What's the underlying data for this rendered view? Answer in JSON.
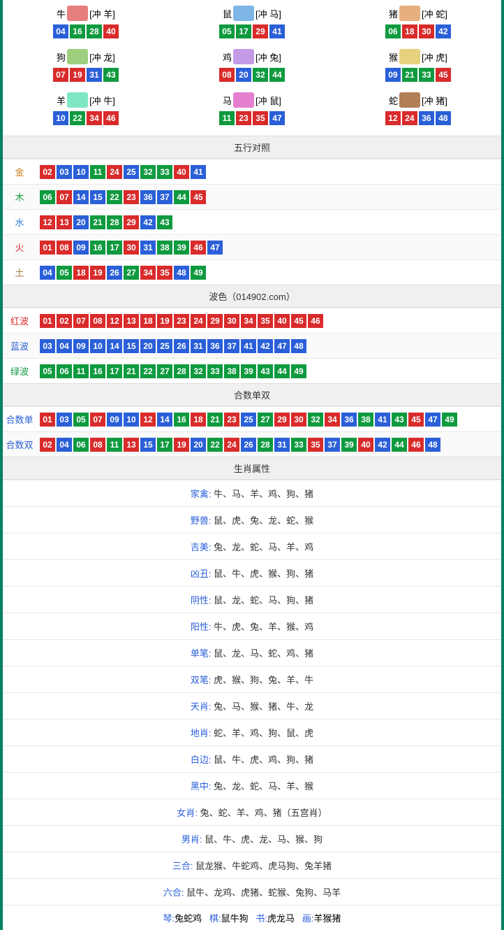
{
  "ball_colors": {
    "red": "#d92b2b",
    "blue": "#2a5fd8",
    "green": "#0f9a3f"
  },
  "zodiac_icon_colors": [
    "#e67e7e",
    "#7eb6e6",
    "#e6b07e",
    "#9ecf7e",
    "#c49be6",
    "#e6d27e",
    "#7ee6c4",
    "#e67ecf",
    "#b27e56"
  ],
  "zodiac": [
    {
      "name": "牛",
      "clash": "[冲 羊]",
      "balls": [
        {
          "n": "04",
          "c": "blue"
        },
        {
          "n": "16",
          "c": "green"
        },
        {
          "n": "28",
          "c": "green"
        },
        {
          "n": "40",
          "c": "red"
        }
      ]
    },
    {
      "name": "鼠",
      "clash": "[冲 马]",
      "balls": [
        {
          "n": "05",
          "c": "green"
        },
        {
          "n": "17",
          "c": "green"
        },
        {
          "n": "29",
          "c": "red"
        },
        {
          "n": "41",
          "c": "blue"
        }
      ]
    },
    {
      "name": "猪",
      "clash": "[冲 蛇]",
      "balls": [
        {
          "n": "06",
          "c": "green"
        },
        {
          "n": "18",
          "c": "red"
        },
        {
          "n": "30",
          "c": "red"
        },
        {
          "n": "42",
          "c": "blue"
        }
      ]
    },
    {
      "name": "狗",
      "clash": "[冲 龙]",
      "balls": [
        {
          "n": "07",
          "c": "red"
        },
        {
          "n": "19",
          "c": "red"
        },
        {
          "n": "31",
          "c": "blue"
        },
        {
          "n": "43",
          "c": "green"
        }
      ]
    },
    {
      "name": "鸡",
      "clash": "[冲 兔]",
      "balls": [
        {
          "n": "08",
          "c": "red"
        },
        {
          "n": "20",
          "c": "blue"
        },
        {
          "n": "32",
          "c": "green"
        },
        {
          "n": "44",
          "c": "green"
        }
      ]
    },
    {
      "name": "猴",
      "clash": "[冲 虎]",
      "balls": [
        {
          "n": "09",
          "c": "blue"
        },
        {
          "n": "21",
          "c": "green"
        },
        {
          "n": "33",
          "c": "green"
        },
        {
          "n": "45",
          "c": "red"
        }
      ]
    },
    {
      "name": "羊",
      "clash": "[冲 牛]",
      "balls": [
        {
          "n": "10",
          "c": "blue"
        },
        {
          "n": "22",
          "c": "green"
        },
        {
          "n": "34",
          "c": "red"
        },
        {
          "n": "46",
          "c": "red"
        }
      ]
    },
    {
      "name": "马",
      "clash": "[冲 鼠]",
      "balls": [
        {
          "n": "11",
          "c": "green"
        },
        {
          "n": "23",
          "c": "red"
        },
        {
          "n": "35",
          "c": "red"
        },
        {
          "n": "47",
          "c": "blue"
        }
      ]
    },
    {
      "name": "蛇",
      "clash": "[冲 猪]",
      "balls": [
        {
          "n": "12",
          "c": "red"
        },
        {
          "n": "24",
          "c": "red"
        },
        {
          "n": "36",
          "c": "blue"
        },
        {
          "n": "48",
          "c": "blue"
        }
      ]
    }
  ],
  "titles": {
    "wuxing": "五行对照",
    "bose": "波色（014902.com）",
    "heshu": "合数单双",
    "shuxing": "生肖属性"
  },
  "wuxing": [
    {
      "label": "金",
      "color": "#c97b1c",
      "balls": [
        {
          "n": "02",
          "c": "red"
        },
        {
          "n": "03",
          "c": "blue"
        },
        {
          "n": "10",
          "c": "blue"
        },
        {
          "n": "11",
          "c": "green"
        },
        {
          "n": "24",
          "c": "red"
        },
        {
          "n": "25",
          "c": "blue"
        },
        {
          "n": "32",
          "c": "green"
        },
        {
          "n": "33",
          "c": "green"
        },
        {
          "n": "40",
          "c": "red"
        },
        {
          "n": "41",
          "c": "blue"
        }
      ]
    },
    {
      "label": "木",
      "color": "#1c9a3f",
      "balls": [
        {
          "n": "06",
          "c": "green"
        },
        {
          "n": "07",
          "c": "red"
        },
        {
          "n": "14",
          "c": "blue"
        },
        {
          "n": "15",
          "c": "blue"
        },
        {
          "n": "22",
          "c": "green"
        },
        {
          "n": "23",
          "c": "red"
        },
        {
          "n": "36",
          "c": "blue"
        },
        {
          "n": "37",
          "c": "blue"
        },
        {
          "n": "44",
          "c": "green"
        },
        {
          "n": "45",
          "c": "red"
        }
      ]
    },
    {
      "label": "水",
      "color": "#2a7fd8",
      "balls": [
        {
          "n": "12",
          "c": "red"
        },
        {
          "n": "13",
          "c": "red"
        },
        {
          "n": "20",
          "c": "blue"
        },
        {
          "n": "21",
          "c": "green"
        },
        {
          "n": "28",
          "c": "green"
        },
        {
          "n": "29",
          "c": "red"
        },
        {
          "n": "42",
          "c": "blue"
        },
        {
          "n": "43",
          "c": "green"
        }
      ]
    },
    {
      "label": "火",
      "color": "#d92b2b",
      "balls": [
        {
          "n": "01",
          "c": "red"
        },
        {
          "n": "08",
          "c": "red"
        },
        {
          "n": "09",
          "c": "blue"
        },
        {
          "n": "16",
          "c": "green"
        },
        {
          "n": "17",
          "c": "green"
        },
        {
          "n": "30",
          "c": "red"
        },
        {
          "n": "31",
          "c": "blue"
        },
        {
          "n": "38",
          "c": "green"
        },
        {
          "n": "39",
          "c": "green"
        },
        {
          "n": "46",
          "c": "red"
        },
        {
          "n": "47",
          "c": "blue"
        }
      ]
    },
    {
      "label": "土",
      "color": "#a67b3b",
      "balls": [
        {
          "n": "04",
          "c": "blue"
        },
        {
          "n": "05",
          "c": "green"
        },
        {
          "n": "18",
          "c": "red"
        },
        {
          "n": "19",
          "c": "red"
        },
        {
          "n": "26",
          "c": "blue"
        },
        {
          "n": "27",
          "c": "green"
        },
        {
          "n": "34",
          "c": "red"
        },
        {
          "n": "35",
          "c": "red"
        },
        {
          "n": "48",
          "c": "blue"
        },
        {
          "n": "49",
          "c": "green"
        }
      ]
    }
  ],
  "bose": [
    {
      "label": "红波",
      "color": "#d92b2b",
      "balls": [
        {
          "n": "01",
          "c": "red"
        },
        {
          "n": "02",
          "c": "red"
        },
        {
          "n": "07",
          "c": "red"
        },
        {
          "n": "08",
          "c": "red"
        },
        {
          "n": "12",
          "c": "red"
        },
        {
          "n": "13",
          "c": "red"
        },
        {
          "n": "18",
          "c": "red"
        },
        {
          "n": "19",
          "c": "red"
        },
        {
          "n": "23",
          "c": "red"
        },
        {
          "n": "24",
          "c": "red"
        },
        {
          "n": "29",
          "c": "red"
        },
        {
          "n": "30",
          "c": "red"
        },
        {
          "n": "34",
          "c": "red"
        },
        {
          "n": "35",
          "c": "red"
        },
        {
          "n": "40",
          "c": "red"
        },
        {
          "n": "45",
          "c": "red"
        },
        {
          "n": "46",
          "c": "red"
        }
      ]
    },
    {
      "label": "蓝波",
      "color": "#2a5fd8",
      "balls": [
        {
          "n": "03",
          "c": "blue"
        },
        {
          "n": "04",
          "c": "blue"
        },
        {
          "n": "09",
          "c": "blue"
        },
        {
          "n": "10",
          "c": "blue"
        },
        {
          "n": "14",
          "c": "blue"
        },
        {
          "n": "15",
          "c": "blue"
        },
        {
          "n": "20",
          "c": "blue"
        },
        {
          "n": "25",
          "c": "blue"
        },
        {
          "n": "26",
          "c": "blue"
        },
        {
          "n": "31",
          "c": "blue"
        },
        {
          "n": "36",
          "c": "blue"
        },
        {
          "n": "37",
          "c": "blue"
        },
        {
          "n": "41",
          "c": "blue"
        },
        {
          "n": "42",
          "c": "blue"
        },
        {
          "n": "47",
          "c": "blue"
        },
        {
          "n": "48",
          "c": "blue"
        }
      ]
    },
    {
      "label": "绿波",
      "color": "#0f9a3f",
      "balls": [
        {
          "n": "05",
          "c": "green"
        },
        {
          "n": "06",
          "c": "green"
        },
        {
          "n": "11",
          "c": "green"
        },
        {
          "n": "16",
          "c": "green"
        },
        {
          "n": "17",
          "c": "green"
        },
        {
          "n": "21",
          "c": "green"
        },
        {
          "n": "22",
          "c": "green"
        },
        {
          "n": "27",
          "c": "green"
        },
        {
          "n": "28",
          "c": "green"
        },
        {
          "n": "32",
          "c": "green"
        },
        {
          "n": "33",
          "c": "green"
        },
        {
          "n": "38",
          "c": "green"
        },
        {
          "n": "39",
          "c": "green"
        },
        {
          "n": "43",
          "c": "green"
        },
        {
          "n": "44",
          "c": "green"
        },
        {
          "n": "49",
          "c": "green"
        }
      ]
    }
  ],
  "heshu": [
    {
      "label": "合数单",
      "color": "#2a5fd8",
      "balls": [
        {
          "n": "01",
          "c": "red"
        },
        {
          "n": "03",
          "c": "blue"
        },
        {
          "n": "05",
          "c": "green"
        },
        {
          "n": "07",
          "c": "red"
        },
        {
          "n": "09",
          "c": "blue"
        },
        {
          "n": "10",
          "c": "blue"
        },
        {
          "n": "12",
          "c": "red"
        },
        {
          "n": "14",
          "c": "blue"
        },
        {
          "n": "16",
          "c": "green"
        },
        {
          "n": "18",
          "c": "red"
        },
        {
          "n": "21",
          "c": "green"
        },
        {
          "n": "23",
          "c": "red"
        },
        {
          "n": "25",
          "c": "blue"
        },
        {
          "n": "27",
          "c": "green"
        },
        {
          "n": "29",
          "c": "red"
        },
        {
          "n": "30",
          "c": "red"
        },
        {
          "n": "32",
          "c": "green"
        },
        {
          "n": "34",
          "c": "red"
        },
        {
          "n": "36",
          "c": "blue"
        },
        {
          "n": "38",
          "c": "green"
        },
        {
          "n": "41",
          "c": "blue"
        },
        {
          "n": "43",
          "c": "green"
        },
        {
          "n": "45",
          "c": "red"
        },
        {
          "n": "47",
          "c": "blue"
        },
        {
          "n": "49",
          "c": "green"
        }
      ]
    },
    {
      "label": "合数双",
      "color": "#2a5fd8",
      "balls": [
        {
          "n": "02",
          "c": "red"
        },
        {
          "n": "04",
          "c": "blue"
        },
        {
          "n": "06",
          "c": "green"
        },
        {
          "n": "08",
          "c": "red"
        },
        {
          "n": "11",
          "c": "green"
        },
        {
          "n": "13",
          "c": "red"
        },
        {
          "n": "15",
          "c": "blue"
        },
        {
          "n": "17",
          "c": "green"
        },
        {
          "n": "19",
          "c": "red"
        },
        {
          "n": "20",
          "c": "blue"
        },
        {
          "n": "22",
          "c": "green"
        },
        {
          "n": "24",
          "c": "red"
        },
        {
          "n": "26",
          "c": "blue"
        },
        {
          "n": "28",
          "c": "green"
        },
        {
          "n": "31",
          "c": "blue"
        },
        {
          "n": "33",
          "c": "green"
        },
        {
          "n": "35",
          "c": "red"
        },
        {
          "n": "37",
          "c": "blue"
        },
        {
          "n": "39",
          "c": "green"
        },
        {
          "n": "40",
          "c": "red"
        },
        {
          "n": "42",
          "c": "blue"
        },
        {
          "n": "44",
          "c": "green"
        },
        {
          "n": "46",
          "c": "red"
        },
        {
          "n": "48",
          "c": "blue"
        }
      ]
    }
  ],
  "attrs": [
    {
      "label": "家禽",
      "color": "#2a5fd8",
      "value": "牛、马、羊、鸡、狗、猪"
    },
    {
      "label": "野兽",
      "color": "#2a5fd8",
      "value": "鼠、虎、兔、龙、蛇、猴"
    },
    {
      "label": "吉美",
      "color": "#2a5fd8",
      "value": "兔、龙、蛇、马、羊、鸡"
    },
    {
      "label": "凶丑",
      "color": "#2a5fd8",
      "value": "鼠、牛、虎、猴、狗、猪"
    },
    {
      "label": "阴性",
      "color": "#2a5fd8",
      "value": "鼠、龙、蛇、马、狗、猪"
    },
    {
      "label": "阳性",
      "color": "#2a5fd8",
      "value": "牛、虎、兔、羊、猴、鸡"
    },
    {
      "label": "单笔",
      "color": "#2a5fd8",
      "value": "鼠、龙、马、蛇、鸡、猪"
    },
    {
      "label": "双笔",
      "color": "#2a5fd8",
      "value": "虎、猴、狗、兔、羊、牛"
    },
    {
      "label": "天肖",
      "color": "#2a5fd8",
      "value": "兔、马、猴、猪、牛、龙"
    },
    {
      "label": "地肖",
      "color": "#2a5fd8",
      "value": "蛇、羊、鸡、狗、鼠、虎"
    },
    {
      "label": "白边",
      "color": "#2a5fd8",
      "value": "鼠、牛、虎、鸡、狗、猪"
    },
    {
      "label": "黑中",
      "color": "#2a5fd8",
      "value": "兔、龙、蛇、马、羊、猴"
    },
    {
      "label": "女肖",
      "color": "#2a5fd8",
      "value": "兔、蛇、羊、鸡、猪（五宫肖）"
    },
    {
      "label": "男肖",
      "color": "#2a5fd8",
      "value": "鼠、牛、虎、龙、马、猴、狗"
    },
    {
      "label": "三合",
      "color": "#2a5fd8",
      "value": "鼠龙猴、牛蛇鸡、虎马狗、兔羊猪"
    },
    {
      "label": "六合",
      "color": "#2a5fd8",
      "value": "鼠牛、龙鸡、虎猪、蛇猴、兔狗、马羊"
    }
  ],
  "bottom_combo": [
    {
      "k": "琴",
      "v": "兔蛇鸡"
    },
    {
      "k": "棋",
      "v": "鼠牛狗"
    },
    {
      "k": "书",
      "v": "虎龙马"
    },
    {
      "k": "画",
      "v": "羊猴猪"
    }
  ]
}
